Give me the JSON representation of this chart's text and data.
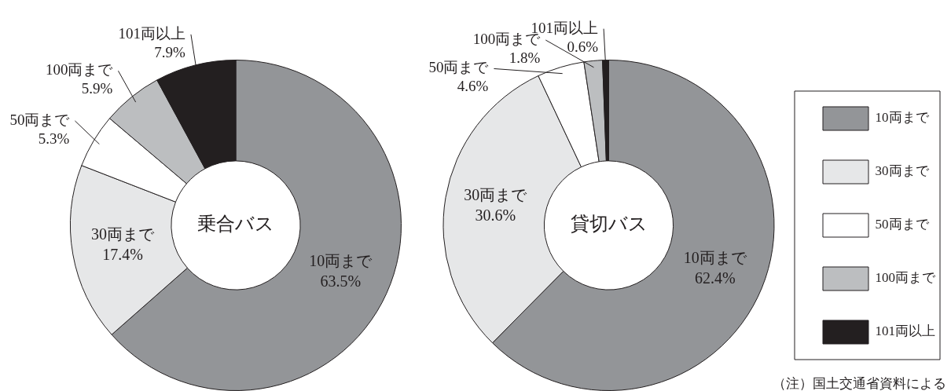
{
  "chart_data": [
    {
      "type": "donut",
      "title": "乗合バス",
      "categories": [
        "10両まで",
        "30両まで",
        "50両まで",
        "100両まで",
        "101両以上"
      ],
      "values": [
        63.5,
        17.4,
        5.3,
        5.9,
        7.9
      ],
      "value_labels": [
        "63.5%",
        "17.4%",
        "5.3%",
        "5.9%",
        "7.9%"
      ],
      "colors": [
        "#939598",
        "#e6e7e8",
        "#ffffff",
        "#bcbec0",
        "#231f20"
      ]
    },
    {
      "type": "donut",
      "title": "貸切バス",
      "categories": [
        "10両まで",
        "30両まで",
        "50両まで",
        "100両まで",
        "101両以上"
      ],
      "values": [
        62.4,
        30.6,
        4.6,
        1.8,
        0.6
      ],
      "value_labels": [
        "62.4%",
        "30.6%",
        "4.6%",
        "1.8%",
        "0.6%"
      ],
      "colors": [
        "#939598",
        "#e6e7e8",
        "#ffffff",
        "#bcbec0",
        "#231f20"
      ],
      "legend": "right",
      "annotations": [
        "（注）国土交通省資料による"
      ]
    }
  ]
}
